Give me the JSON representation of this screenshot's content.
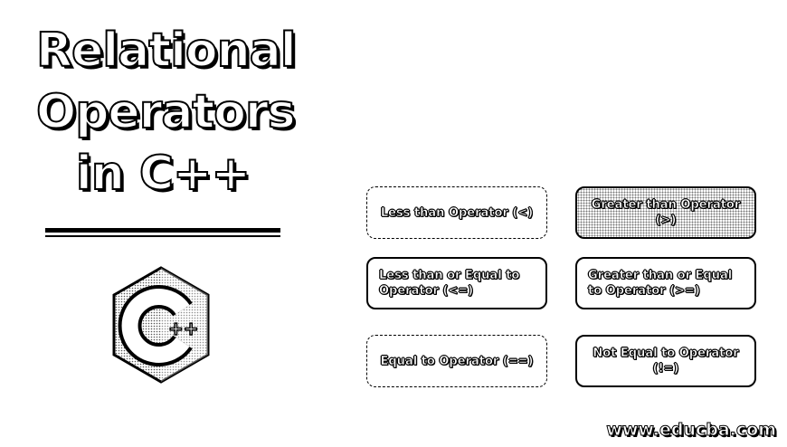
{
  "title": {
    "line1": "Relational",
    "line2": "Operators",
    "line3": "in C++"
  },
  "logo": {
    "icon": "cpp-logo-icon",
    "text": "++"
  },
  "operators": [
    {
      "label": "Less than Operator (<)"
    },
    {
      "label": "Greater than Operator (>)"
    },
    {
      "label": "Less than or Equal to Operator (<=)"
    },
    {
      "label": "Greater than or Equal to Operator (>=)"
    },
    {
      "label": "Equal to Operator (==)"
    },
    {
      "label": "Not Equal to Operator (!=)"
    }
  ],
  "footer": {
    "site": "www.educba.com"
  }
}
